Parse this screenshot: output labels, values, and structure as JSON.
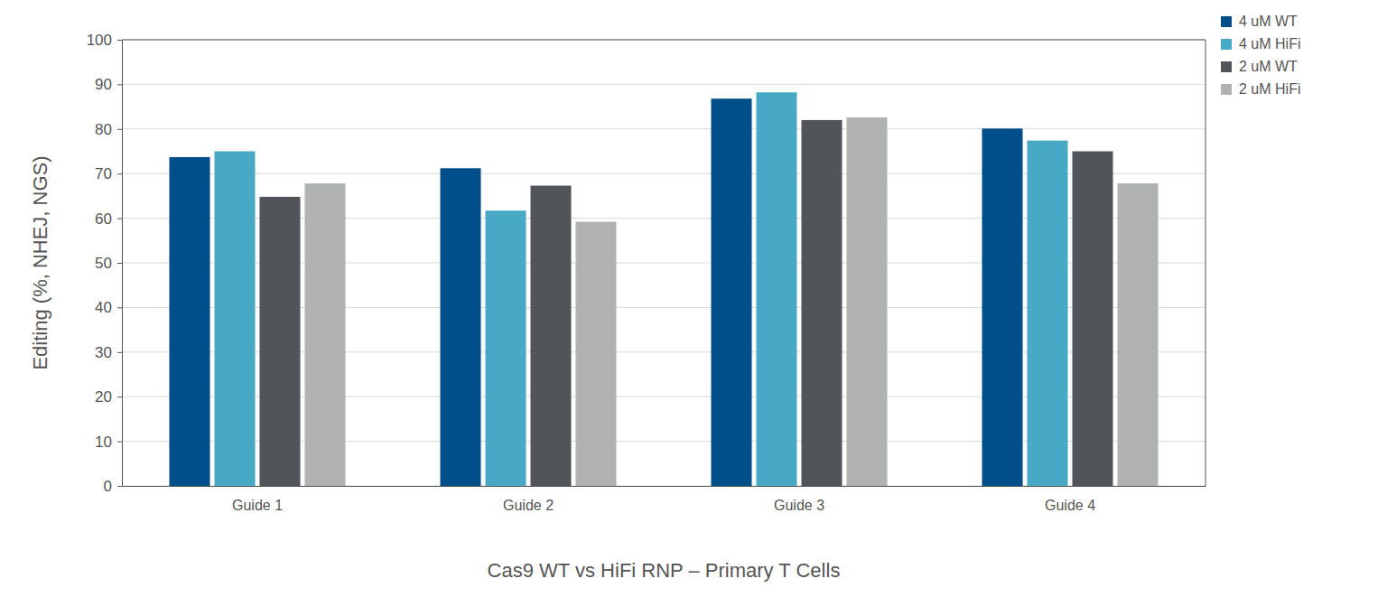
{
  "chart_data": {
    "type": "bar",
    "xlabel": "Cas9 WT vs HiFi RNP – Primary T Cells",
    "ylabel": "Editing (%, NHEJ, NGS)",
    "categories": [
      "Guide 1",
      "Guide 2",
      "Guide 3",
      "Guide 4"
    ],
    "series": [
      {
        "name": "4 uM WT",
        "color": "#004f8b",
        "values": [
          73.7,
          71.2,
          86.8,
          80.1
        ]
      },
      {
        "name": "4 uM HiFi",
        "color": "#47a9c6",
        "values": [
          75.0,
          61.7,
          88.2,
          77.4
        ]
      },
      {
        "name": "2 uM WT",
        "color": "#515458",
        "values": [
          64.8,
          67.3,
          82.0,
          75.0
        ]
      },
      {
        "name": "2 uM HiFi",
        "color": "#b0b1b1",
        "values": [
          67.8,
          59.2,
          82.6,
          67.8
        ]
      }
    ],
    "ylim": [
      0,
      100
    ],
    "yticks": [
      0,
      10,
      20,
      30,
      40,
      50,
      60,
      70,
      80,
      90,
      100
    ],
    "grid": true,
    "legend": "top-right"
  }
}
